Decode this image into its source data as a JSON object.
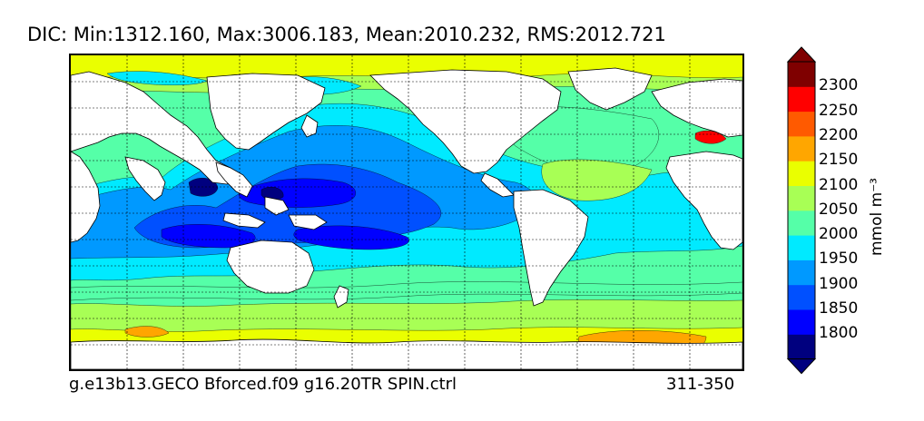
{
  "title": "DIC: Min:1312.160, Max:3006.183, Mean:2010.232, RMS:2012.721",
  "footer": {
    "case_name": "g.e13b13.GECO Bforced.f09 g16.20TR SPIN.ctrl",
    "years": "311-350"
  },
  "colorbar": {
    "unit_label": "mmol m⁻³",
    "tick_labels": [
      "2300",
      "2250",
      "2200",
      "2150",
      "2100",
      "2050",
      "2000",
      "1950",
      "1900",
      "1850",
      "1800"
    ],
    "levels_low_to_high": [
      1800,
      1850,
      1900,
      1950,
      2000,
      2050,
      2100,
      2150,
      2200,
      2250,
      2300
    ],
    "colors_low_to_high": [
      "#00007f",
      "#0000ff",
      "#0050ff",
      "#0099ff",
      "#00eaff",
      "#55ffa8",
      "#a8ff55",
      "#eaff00",
      "#ffa600",
      "#ff5a00",
      "#ff0000",
      "#7f0000"
    ]
  },
  "map": {
    "projection": "equirectangular, Pacific-centred",
    "gridlines": "dashed",
    "land_color": "#ffffff",
    "contour_line_color": "#000000"
  }
}
